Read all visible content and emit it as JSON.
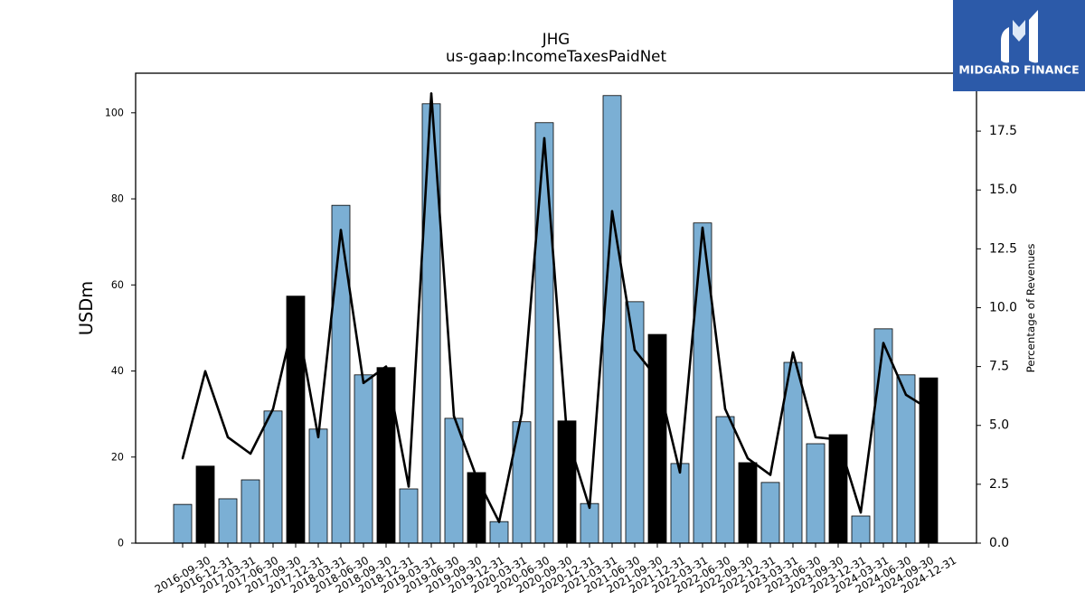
{
  "logo": {
    "text": "MIDGARD FINANCE",
    "icon": "midgard-m-logo-icon",
    "background": "#2c5aa9"
  },
  "chart_data": {
    "type": "bar",
    "title": "JHG",
    "subtitle": "us-gaap:IncomeTaxesPaidNet",
    "ylabel": "USDm",
    "y2label": "Percentage of Revenues",
    "categories": [
      "2016-09-30",
      "2016-12-31",
      "2017-03-31",
      "2017-06-30",
      "2017-09-30",
      "2017-12-31",
      "2018-03-31",
      "2018-06-30",
      "2018-09-30",
      "2018-12-31",
      "2019-03-31",
      "2019-06-30",
      "2019-09-30",
      "2019-12-31",
      "2020-03-31",
      "2020-06-30",
      "2020-09-30",
      "2020-12-31",
      "2021-03-31",
      "2021-06-30",
      "2021-09-30",
      "2021-12-31",
      "2022-03-31",
      "2022-06-30",
      "2022-09-30",
      "2022-12-31",
      "2023-03-31",
      "2023-06-30",
      "2023-09-30",
      "2023-12-31",
      "2024-03-31",
      "2024-06-30",
      "2024-09-30",
      "2024-12-31"
    ],
    "series": [
      {
        "type": "bar",
        "values": [
          9.0,
          17.9,
          10.3,
          14.7,
          30.7,
          57.4,
          26.5,
          78.5,
          39.1,
          40.8,
          12.6,
          102.1,
          29.0,
          16.4,
          5.0,
          28.2,
          97.7,
          28.4,
          9.2,
          104.0,
          56.1,
          48.5,
          18.5,
          74.4,
          29.4,
          18.7,
          14.1,
          42.0,
          23.1,
          25.2,
          6.3,
          49.8,
          39.1,
          38.4
        ],
        "highlight": [
          false,
          true,
          false,
          false,
          false,
          true,
          false,
          false,
          false,
          true,
          false,
          false,
          false,
          true,
          false,
          false,
          false,
          true,
          false,
          false,
          false,
          true,
          false,
          false,
          false,
          true,
          false,
          false,
          false,
          true,
          false,
          false,
          false,
          true
        ]
      },
      {
        "type": "line",
        "secondary_axis": true,
        "values": [
          3.6,
          7.3,
          4.5,
          3.8,
          5.7,
          9.8,
          4.5,
          13.3,
          6.8,
          7.5,
          2.4,
          19.1,
          5.4,
          2.8,
          0.9,
          5.5,
          17.2,
          4.6,
          1.5,
          14.1,
          8.2,
          7.0,
          3.0,
          13.4,
          5.7,
          3.6,
          2.9,
          8.1,
          4.5,
          4.4,
          1.3,
          8.5,
          6.3,
          5.7
        ]
      }
    ],
    "ylim": [
      0,
      109.2
    ],
    "y2lim": [
      0,
      19.96
    ],
    "yticks": [
      "0",
      "20",
      "40",
      "60",
      "80",
      "100"
    ],
    "y2ticks": [
      "0.0",
      "2.5",
      "5.0",
      "7.5",
      "10.0",
      "12.5",
      "15.0",
      "17.5"
    ],
    "grid": false,
    "colors": {
      "bar": "#7bafd4",
      "highlight": "#000000",
      "edge": "#000000",
      "line": "#000000"
    }
  }
}
